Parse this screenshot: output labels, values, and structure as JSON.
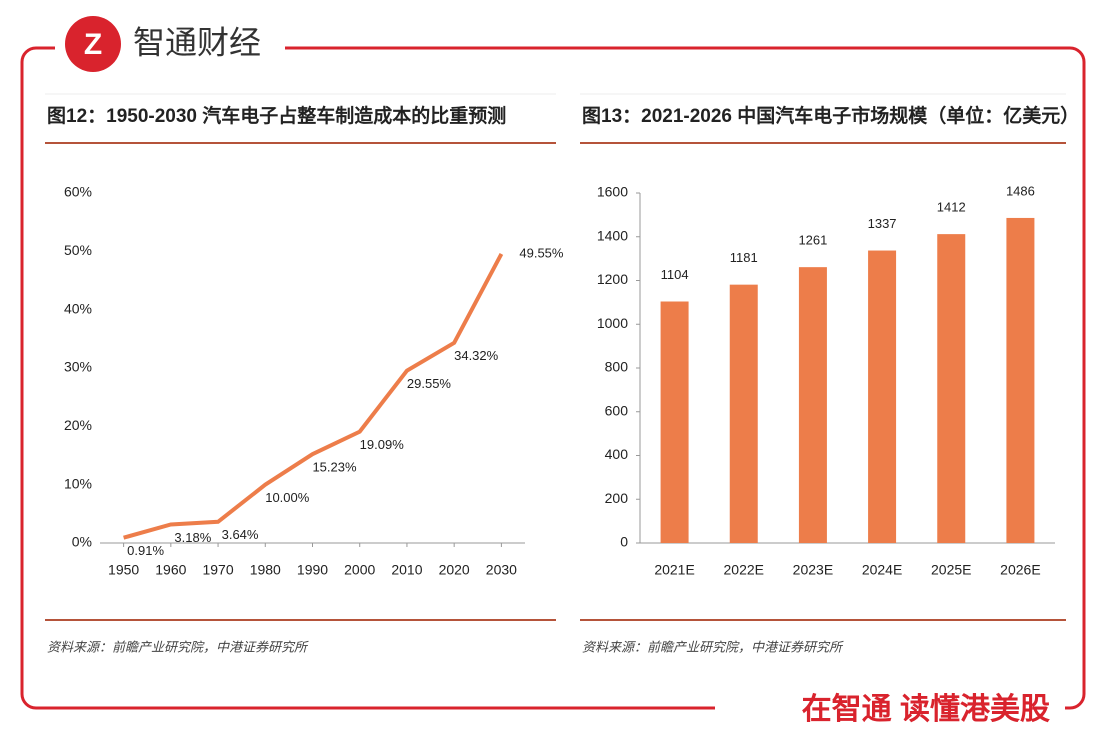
{
  "header": {
    "brand": "智通财经"
  },
  "footer": {
    "slogan": "在智通 读懂港美股"
  },
  "chart_data": [
    {
      "type": "line",
      "title": "图12：1950-2030 汽车电子占整车制造成本的比重预测",
      "source": "资料来源：前瞻产业研究院，中港证券研究所",
      "x": [
        1950,
        1960,
        1970,
        1980,
        1990,
        2000,
        2010,
        2020,
        2030
      ],
      "xlim": [
        1945,
        2035
      ],
      "xticks": [
        1950,
        1960,
        1970,
        1980,
        1990,
        2000,
        2010,
        2020,
        2030
      ],
      "series": [
        {
          "color": "#ed7d4a",
          "values": [
            0.91,
            3.18,
            3.64,
            10.0,
            15.23,
            19.09,
            29.55,
            34.32,
            49.55
          ],
          "value_labels": [
            "0.91%",
            "3.18%",
            "3.64%",
            "10.00%",
            "15.23%",
            "19.09%",
            "29.55%",
            "34.32%",
            "49.55%"
          ]
        }
      ],
      "ylim": [
        0,
        60
      ],
      "yticks": [
        {
          "value": 0,
          "label": "0%"
        },
        {
          "value": 10,
          "label": "10%"
        },
        {
          "value": 20,
          "label": "20%"
        },
        {
          "value": 30,
          "label": "30%"
        },
        {
          "value": 40,
          "label": "40%"
        },
        {
          "value": 50,
          "label": "50%"
        },
        {
          "value": 60,
          "label": "60%"
        }
      ]
    },
    {
      "type": "bar",
      "title": "图13：2021-2026 中国汽车电子市场规模（单位：亿美元）",
      "source": "资料来源：前瞻产业研究院，中港证券研究所",
      "categories": [
        "2021E",
        "2022E",
        "2023E",
        "2024E",
        "2025E",
        "2026E"
      ],
      "values": [
        1104,
        1181,
        1261,
        1337,
        1412,
        1486
      ],
      "color": "#ed7d4a",
      "ylim": [
        0,
        1600
      ],
      "yticks": [
        0,
        200,
        400,
        600,
        800,
        1000,
        1200,
        1400,
        1600
      ]
    }
  ]
}
